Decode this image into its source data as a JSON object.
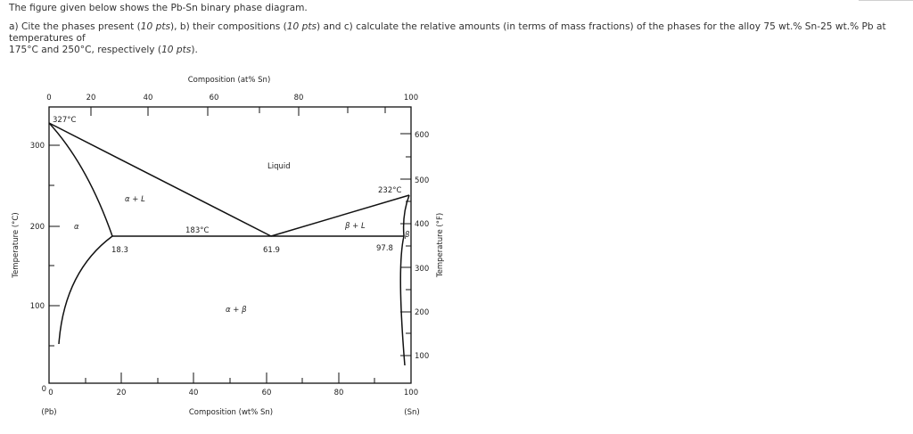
{
  "question": {
    "title": "The figure given below shows the Pb-Sn binary phase diagram.",
    "line1_a": "a) Cite the phases present (",
    "line1_a_pts": "10 pts",
    "line1_b": "), b) their compositions  (",
    "line1_b_pts": "10 pts",
    "line1_c": ") and c) calculate the relative amounts (in terms of mass fractions) of the phases for the alloy 75 wt.% Sn-25 wt.% Pb at temperatures of",
    "line2_a": "175°C and 250°C, respectively  (",
    "line2_a_pts": "10 pts",
    "line2_b": ")."
  },
  "diagram": {
    "top_axis_label": "Composition (at% Sn)",
    "bottom_axis_label": "Composition (wt% Sn)",
    "left_axis_label": "Temperature (°C)",
    "right_axis_label": "Temperature (°F)",
    "left_end_label": "(Pb)",
    "right_end_label": "(Sn)",
    "top_ticks": [
      "0",
      "20",
      "40",
      "60",
      "80",
      "100"
    ],
    "bottom_ticks": [
      "0",
      "20",
      "40",
      "60",
      "80",
      "100"
    ],
    "left_ticks": [
      "0",
      "100",
      "200",
      "300"
    ],
    "right_ticks": [
      "100",
      "200",
      "300",
      "400",
      "500",
      "600"
    ],
    "annotations": {
      "pb_melting": "327°C",
      "sn_melting": "232°C",
      "eutectic_temp": "183°C",
      "alpha_limit": "18.3",
      "eutectic_comp": "61.9",
      "beta_limit": "97.8"
    },
    "regions": {
      "liquid": "Liquid",
      "alpha_liquid": "α + L",
      "beta_liquid": "β + L",
      "alpha": "α",
      "beta": "β",
      "alpha_beta": "α + β"
    }
  }
}
